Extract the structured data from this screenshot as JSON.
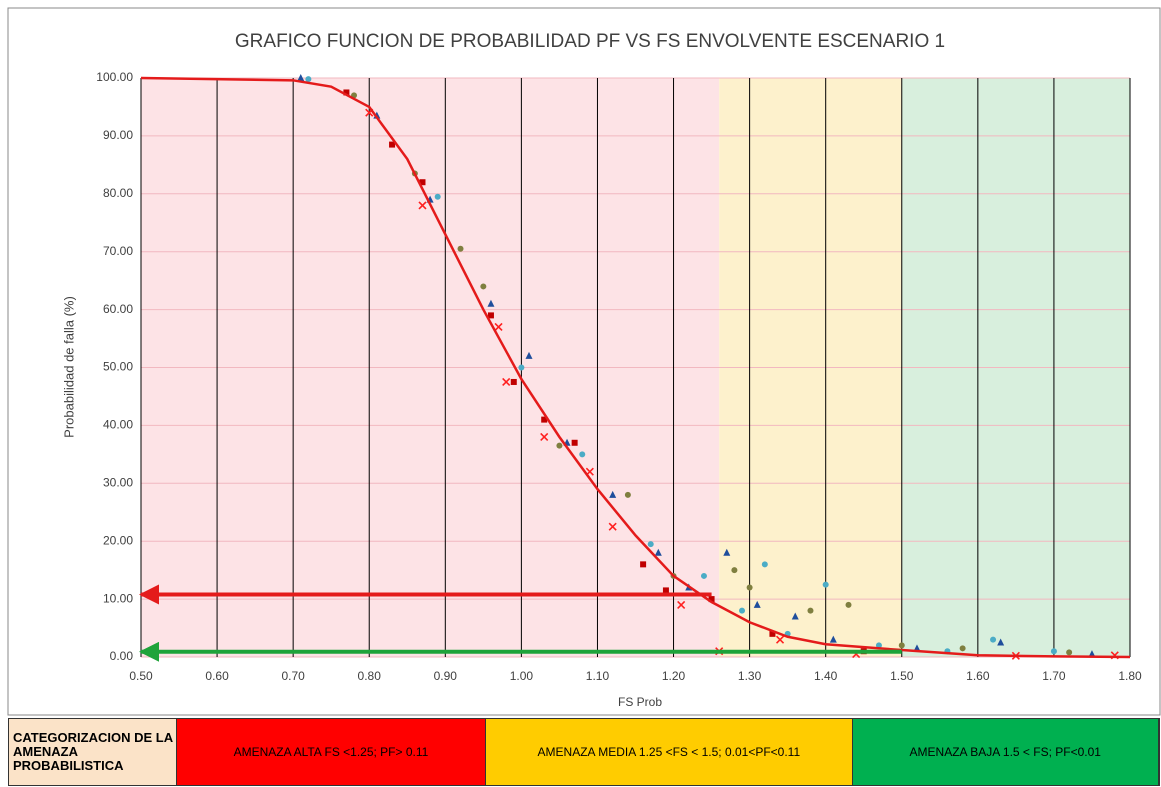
{
  "chart_data": {
    "type": "scatter",
    "title": "GRAFICO FUNCION DE PROBABILIDAD  PF VS FS ENVOLVENTE ESCENARIO 1",
    "xlabel": "FS Prob",
    "ylabel": "Probabilidad de falla (%)",
    "xlim": [
      0.5,
      1.8
    ],
    "ylim": [
      0,
      100
    ],
    "xticks": [
      {
        "value": 0.5,
        "label": "0.50"
      },
      {
        "value": 0.6,
        "label": "0.60"
      },
      {
        "value": 0.7,
        "label": "0.70"
      },
      {
        "value": 0.8,
        "label": "0.80"
      },
      {
        "value": 0.9,
        "label": "0.90"
      },
      {
        "value": 1.0,
        "label": "1.00"
      },
      {
        "value": 1.1,
        "label": "1.10"
      },
      {
        "value": 1.2,
        "label": "1.20"
      },
      {
        "value": 1.3,
        "label": "1.30"
      },
      {
        "value": 1.4,
        "label": "1.40"
      },
      {
        "value": 1.5,
        "label": "1.50"
      },
      {
        "value": 1.6,
        "label": "1.60"
      },
      {
        "value": 1.7,
        "label": "1.70"
      },
      {
        "value": 1.8,
        "label": "1.80"
      }
    ],
    "yticks": [
      {
        "value": 0,
        "label": "0.00"
      },
      {
        "value": 10,
        "label": "10.00"
      },
      {
        "value": 20,
        "label": "20.00"
      },
      {
        "value": 30,
        "label": "30.00"
      },
      {
        "value": 40,
        "label": "40.00"
      },
      {
        "value": 50,
        "label": "50.00"
      },
      {
        "value": 60,
        "label": "60.00"
      },
      {
        "value": 70,
        "label": "70.00"
      },
      {
        "value": 80,
        "label": "80.00"
      },
      {
        "value": 90,
        "label": "90.00"
      },
      {
        "value": 100,
        "label": "100.00"
      }
    ],
    "grid": true,
    "zones": [
      {
        "xlim": [
          0.5,
          1.26
        ],
        "color": "#fde3e6"
      },
      {
        "xlim": [
          1.26,
          1.5
        ],
        "color": "#fdf1cc"
      },
      {
        "xlim": [
          1.5,
          1.8
        ],
        "color": "#d8efdd"
      }
    ],
    "series": [
      {
        "marker": "triangle",
        "color": "#1f4e9c",
        "x": [
          0.71,
          0.81,
          0.88,
          0.96,
          1.01,
          1.06,
          1.12,
          1.18,
          1.22,
          1.27,
          1.31,
          1.36,
          1.41,
          1.52,
          1.63,
          1.75
        ],
        "values": [
          100,
          93.5,
          79,
          61,
          52,
          37,
          28,
          18,
          12,
          18,
          9,
          7,
          3,
          1.5,
          2.5,
          0.5
        ]
      },
      {
        "marker": "square",
        "color": "#c00000",
        "x": [
          0.77,
          0.83,
          0.87,
          0.96,
          0.99,
          1.03,
          1.07,
          1.16,
          1.19,
          1.25,
          1.33,
          1.45
        ],
        "values": [
          97.5,
          88.5,
          82,
          59,
          47.5,
          41,
          37,
          16,
          11.5,
          10,
          4,
          1
        ]
      },
      {
        "marker": "x",
        "color": "#ff2020",
        "x": [
          0.8,
          0.87,
          0.97,
          0.98,
          1.03,
          1.09,
          1.12,
          1.21,
          1.26,
          1.34,
          1.44,
          1.65,
          1.78
        ],
        "values": [
          94,
          78,
          57,
          47.5,
          38,
          32,
          22.5,
          9,
          1,
          3,
          0.5,
          0.2,
          0.3
        ]
      },
      {
        "marker": "circle",
        "color": "#7f7f3f",
        "x": [
          0.78,
          0.86,
          0.92,
          0.95,
          1.05,
          1.14,
          1.2,
          1.28,
          1.3,
          1.38,
          1.43,
          1.5,
          1.58,
          1.72
        ],
        "values": [
          97,
          83.5,
          70.5,
          64,
          36.5,
          28,
          14,
          15,
          12,
          8,
          9,
          2,
          1.5,
          0.8
        ]
      },
      {
        "marker": "circle",
        "color": "#4bacc6",
        "x": [
          0.72,
          0.89,
          1.0,
          1.08,
          1.17,
          1.24,
          1.29,
          1.32,
          1.35,
          1.4,
          1.47,
          1.56,
          1.62,
          1.7
        ],
        "values": [
          99.8,
          79.5,
          50,
          35,
          19.5,
          14,
          8,
          16,
          4,
          12.5,
          2,
          1,
          3,
          1
        ]
      },
      {
        "marker": "line",
        "color": "#e41b1b",
        "x": [
          0.5,
          0.7,
          0.75,
          0.8,
          0.85,
          0.9,
          0.95,
          1.0,
          1.05,
          1.1,
          1.15,
          1.2,
          1.25,
          1.3,
          1.35,
          1.4,
          1.5,
          1.6,
          1.7,
          1.8
        ],
        "values": [
          100,
          99.6,
          98.5,
          95,
          86,
          73,
          60,
          48,
          38,
          29,
          21,
          14,
          9.5,
          6,
          3.5,
          2.2,
          1.2,
          0.3,
          0.1,
          0
        ]
      }
    ],
    "arrows": [
      {
        "y": 10.8,
        "x_from": 1.25,
        "x_to": 0.5,
        "color": "#e41b1b"
      },
      {
        "y": 0.9,
        "x_from": 1.5,
        "x_to": 0.5,
        "color": "#1fa33a"
      }
    ]
  },
  "footer": {
    "header": "CATEGORIZACION DE LA AMENAZA PROBABILISTICA",
    "header_color": "#fbe3c8",
    "cells": [
      {
        "text": "AMENAZA ALTA FS <1.25; PF> 0.11",
        "color": "#ff0000"
      },
      {
        "text": "AMENAZA MEDIA 1.25 <FS < 1.5; 0.01<PF<0.11",
        "color": "#ffcc00"
      },
      {
        "text": "AMENAZA BAJA 1.5 < FS; PF<0.01",
        "color": "#00b050"
      }
    ]
  }
}
